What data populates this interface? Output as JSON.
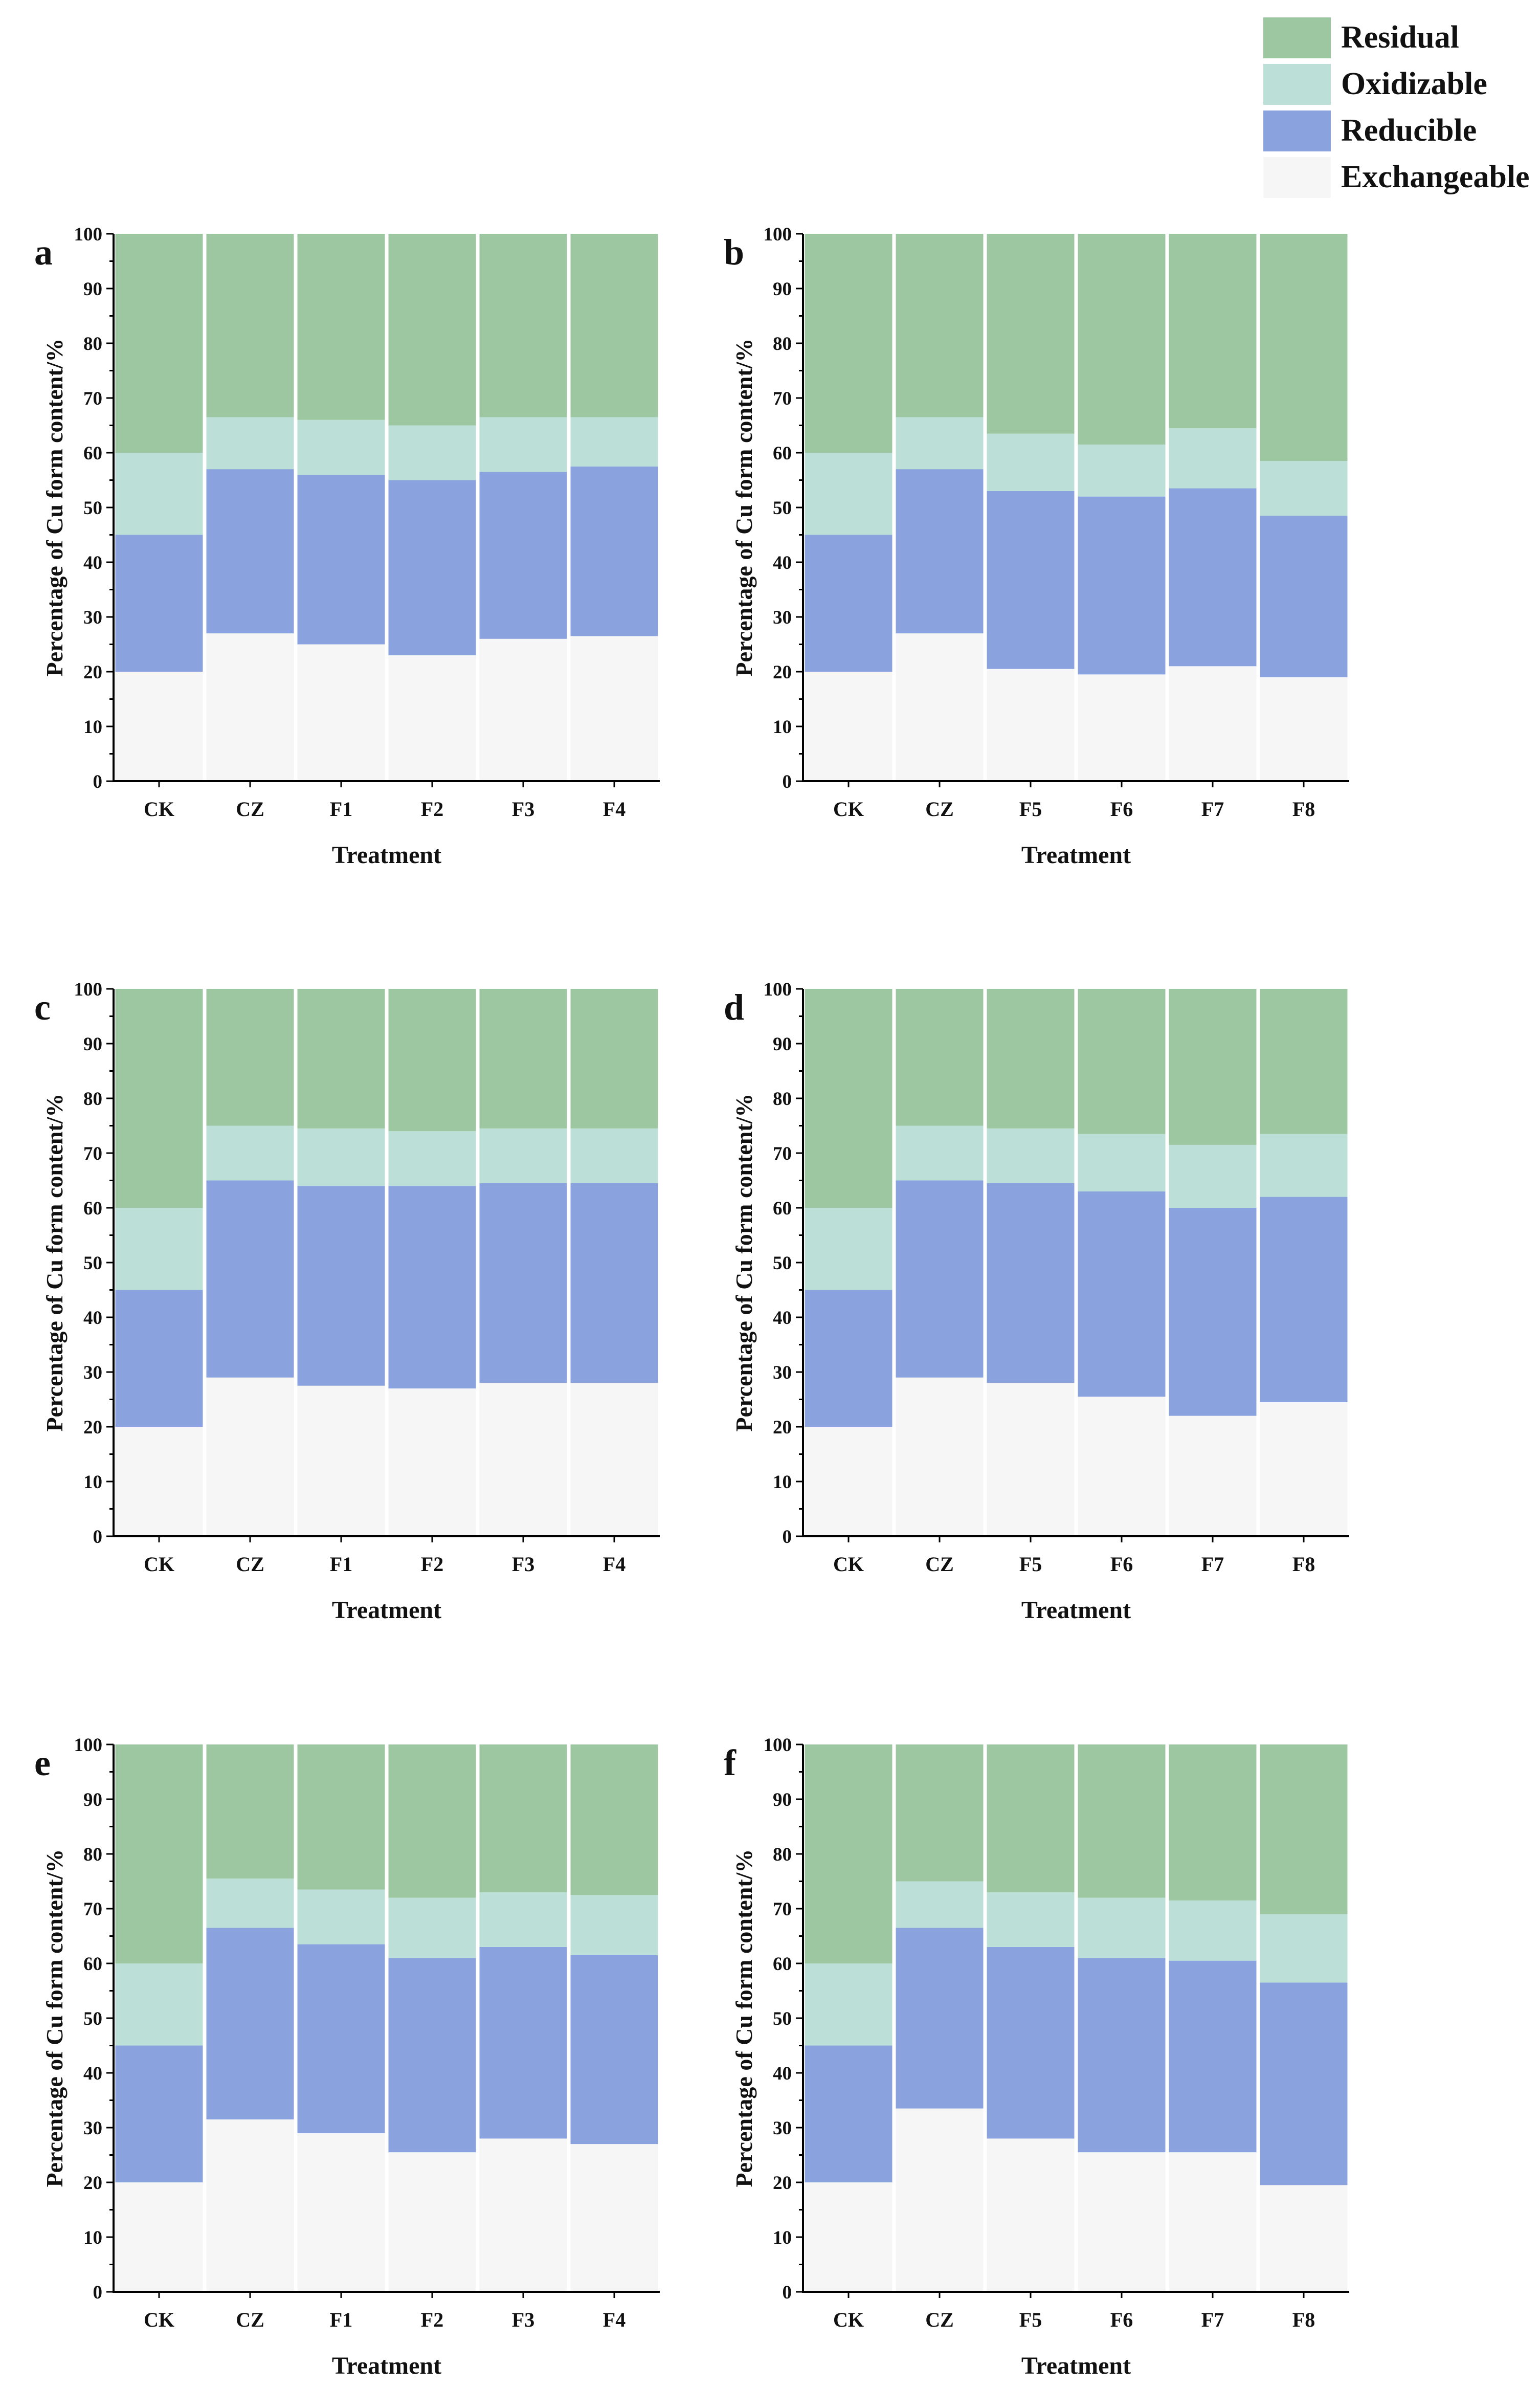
{
  "legend": {
    "items": [
      {
        "label": "Residual",
        "color": "#9dc7a0"
      },
      {
        "label": "Oxidizable",
        "color": "#bce0d7"
      },
      {
        "label": "Reducible",
        "color": "#8aa3df"
      },
      {
        "label": "Exchangeable",
        "color": "#f6f6f6"
      }
    ]
  },
  "chart_data": [
    {
      "panel": "a",
      "type": "bar",
      "stacked": true,
      "xlabel": "Treatment",
      "ylabel": "Percentage of Cu form content/%",
      "ylim": [
        0,
        100
      ],
      "yticks": [
        0,
        10,
        20,
        30,
        40,
        50,
        60,
        70,
        80,
        90,
        100
      ],
      "categories": [
        "CK",
        "CZ",
        "F1",
        "F2",
        "F3",
        "F4"
      ],
      "series": [
        {
          "name": "Exchangeable",
          "values": [
            20,
            27,
            25,
            23,
            26,
            26.5
          ]
        },
        {
          "name": "Reducible",
          "values": [
            25,
            30,
            31,
            32,
            30.5,
            31
          ]
        },
        {
          "name": "Oxidizable",
          "values": [
            15,
            9.5,
            10,
            10,
            10,
            9
          ]
        },
        {
          "name": "Residual",
          "values": [
            40,
            33.5,
            34,
            35,
            33.5,
            33.5
          ]
        }
      ]
    },
    {
      "panel": "b",
      "type": "bar",
      "stacked": true,
      "xlabel": "Treatment",
      "ylabel": "Percentage of Cu form content/%",
      "ylim": [
        0,
        100
      ],
      "yticks": [
        0,
        10,
        20,
        30,
        40,
        50,
        60,
        70,
        80,
        90,
        100
      ],
      "categories": [
        "CK",
        "CZ",
        "F5",
        "F6",
        "F7",
        "F8"
      ],
      "series": [
        {
          "name": "Exchangeable",
          "values": [
            20,
            27,
            20.5,
            19.5,
            21,
            19
          ]
        },
        {
          "name": "Reducible",
          "values": [
            25,
            30,
            32.5,
            32.5,
            32.5,
            29.5
          ]
        },
        {
          "name": "Oxidizable",
          "values": [
            15,
            9.5,
            10.5,
            9.5,
            11,
            10
          ]
        },
        {
          "name": "Residual",
          "values": [
            40,
            33.5,
            36.5,
            38.5,
            35.5,
            41.5
          ]
        }
      ]
    },
    {
      "panel": "c",
      "type": "bar",
      "stacked": true,
      "xlabel": "Treatment",
      "ylabel": "Percentage of Cu form content/%",
      "ylim": [
        0,
        100
      ],
      "yticks": [
        0,
        10,
        20,
        30,
        40,
        50,
        60,
        70,
        80,
        90,
        100
      ],
      "categories": [
        "CK",
        "CZ",
        "F1",
        "F2",
        "F3",
        "F4"
      ],
      "series": [
        {
          "name": "Exchangeable",
          "values": [
            20,
            29,
            27.5,
            27,
            28,
            28
          ]
        },
        {
          "name": "Reducible",
          "values": [
            25,
            36,
            36.5,
            37,
            36.5,
            36.5
          ]
        },
        {
          "name": "Oxidizable",
          "values": [
            15,
            10,
            10.5,
            10,
            10,
            10
          ]
        },
        {
          "name": "Residual",
          "values": [
            40,
            25,
            25.5,
            26,
            25.5,
            25.5
          ]
        }
      ]
    },
    {
      "panel": "d",
      "type": "bar",
      "stacked": true,
      "xlabel": "Treatment",
      "ylabel": "Percentage of Cu form content/%",
      "ylim": [
        0,
        100
      ],
      "yticks": [
        0,
        10,
        20,
        30,
        40,
        50,
        60,
        70,
        80,
        90,
        100
      ],
      "categories": [
        "CK",
        "CZ",
        "F5",
        "F6",
        "F7",
        "F8"
      ],
      "series": [
        {
          "name": "Exchangeable",
          "values": [
            20,
            29,
            28,
            25.5,
            22,
            24.5
          ]
        },
        {
          "name": "Reducible",
          "values": [
            25,
            36,
            36.5,
            37.5,
            38,
            37.5
          ]
        },
        {
          "name": "Oxidizable",
          "values": [
            15,
            10,
            10,
            10.5,
            11.5,
            11.5
          ]
        },
        {
          "name": "Residual",
          "values": [
            40,
            25,
            25.5,
            26.5,
            28.5,
            26.5
          ]
        }
      ]
    },
    {
      "panel": "e",
      "type": "bar",
      "stacked": true,
      "xlabel": "Treatment",
      "ylabel": "Percentage of Cu form content/%",
      "ylim": [
        0,
        100
      ],
      "yticks": [
        0,
        10,
        20,
        30,
        40,
        50,
        60,
        70,
        80,
        90,
        100
      ],
      "categories": [
        "CK",
        "CZ",
        "F1",
        "F2",
        "F3",
        "F4"
      ],
      "series": [
        {
          "name": "Exchangeable",
          "values": [
            20,
            31.5,
            29,
            25.5,
            28,
            27
          ]
        },
        {
          "name": "Reducible",
          "values": [
            25,
            35,
            34.5,
            35.5,
            35,
            34.5
          ]
        },
        {
          "name": "Oxidizable",
          "values": [
            15,
            9,
            10,
            11,
            10,
            11
          ]
        },
        {
          "name": "Residual",
          "values": [
            40,
            24.5,
            26.5,
            28,
            27,
            27.5
          ]
        }
      ]
    },
    {
      "panel": "f",
      "type": "bar",
      "stacked": true,
      "xlabel": "Treatment",
      "ylabel": "Percentage of Cu form content/%",
      "ylim": [
        0,
        100
      ],
      "yticks": [
        0,
        10,
        20,
        30,
        40,
        50,
        60,
        70,
        80,
        90,
        100
      ],
      "categories": [
        "CK",
        "CZ",
        "F5",
        "F6",
        "F7",
        "F8"
      ],
      "series": [
        {
          "name": "Exchangeable",
          "values": [
            20,
            33.5,
            28,
            25.5,
            25.5,
            19.5
          ]
        },
        {
          "name": "Reducible",
          "values": [
            25,
            33,
            35,
            35.5,
            35,
            37
          ]
        },
        {
          "name": "Oxidizable",
          "values": [
            15,
            8.5,
            10,
            11,
            11,
            12.5
          ]
        },
        {
          "name": "Residual",
          "values": [
            40,
            25,
            27,
            28,
            28.5,
            31
          ]
        }
      ]
    }
  ]
}
